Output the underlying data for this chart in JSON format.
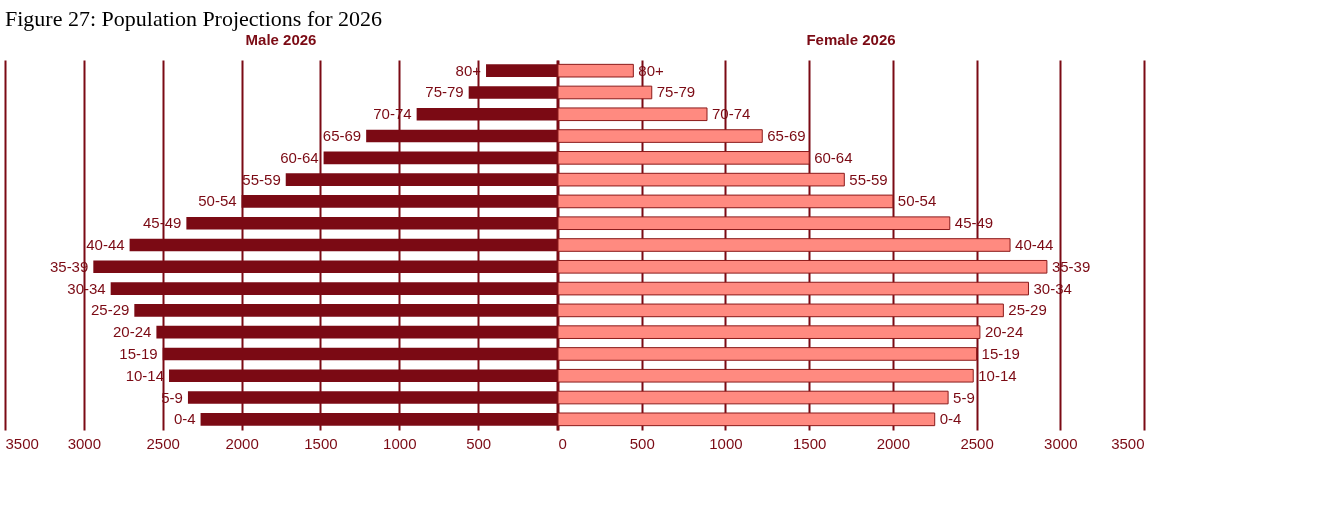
{
  "chart_data": [
    {
      "type": "bar",
      "title": "Figure 27: Population Projections for 2026",
      "orientation": "horizontal",
      "categories": [
        "80+",
        "75-79",
        "70-74",
        "65-69",
        "60-64",
        "55-59",
        "50-54",
        "45-49",
        "40-44",
        "35-39",
        "30-34",
        "25-29",
        "20-24",
        "15-19",
        "10-14",
        "5-9",
        "0-4"
      ],
      "series": [
        {
          "name": "Male 2026",
          "color": "#7b0a14",
          "values": [
            450,
            560,
            890,
            1210,
            1480,
            1720,
            2000,
            2350,
            2710,
            2940,
            2830,
            2680,
            2540,
            2500,
            2460,
            2340,
            2260
          ]
        }
      ],
      "xlim": [
        3500,
        0
      ],
      "xticks": [
        3500,
        3000,
        2500,
        2000,
        1500,
        1000,
        500,
        {
          "value": 0,
          "label": null
        }
      ],
      "grid": "x"
    },
    {
      "type": "bar",
      "orientation": "horizontal",
      "categories": [
        "80+",
        "75-79",
        "70-74",
        "65-69",
        "60-64",
        "55-59",
        "50-54",
        "45-49",
        "40-44",
        "35-39",
        "30-34",
        "25-29",
        "20-24",
        "15-19",
        "10-14",
        "5-9",
        "0-4"
      ],
      "series": [
        {
          "name": "Female 2026",
          "color": "#ff8a80",
          "values": [
            450,
            560,
            890,
            1220,
            1500,
            1710,
            2000,
            2340,
            2700,
            2920,
            2810,
            2660,
            2520,
            2500,
            2480,
            2330,
            2250
          ]
        }
      ],
      "xlim": [
        0,
        3500
      ],
      "xticks": [
        0,
        500,
        1000,
        1500,
        2000,
        2500,
        3000,
        3500
      ],
      "grid": "x"
    }
  ]
}
